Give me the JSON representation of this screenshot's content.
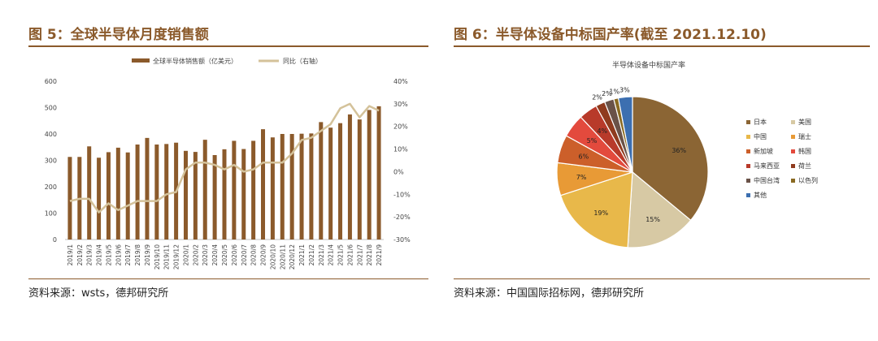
{
  "left": {
    "figure_title": "图 5：全球半导体月度销售额",
    "source": "资料来源：wsts，德邦研究所"
  },
  "right": {
    "figure_title": "图 6：半导体设备中标国产率(截至 2021.12.10)",
    "source": "资料来源：中国国际招标网，德邦研究所"
  },
  "chart_data": [
    {
      "type": "bar",
      "categories": [
        "2019/1",
        "2019/2",
        "2019/3",
        "2019/4",
        "2019/5",
        "2019/6",
        "2019/7",
        "2019/8",
        "2019/9",
        "2019/10",
        "2019/11",
        "2019/12",
        "2020/1",
        "2020/2",
        "2020/3",
        "2020/4",
        "2020/5",
        "2020/6",
        "2020/7",
        "2020/8",
        "2020/9",
        "2020/10",
        "2020/11",
        "2020/12",
        "2021/1",
        "2021/2",
        "2021/3",
        "2021/4",
        "2021/5",
        "2021/6",
        "2021/7",
        "2021/8",
        "2021/9"
      ],
      "series": [
        {
          "name": "全球半导体销售额（亿美元）",
          "type": "bar",
          "axis": "left",
          "values": [
            313,
            313,
            353,
            310,
            331,
            348,
            330,
            360,
            385,
            360,
            362,
            367,
            336,
            332,
            378,
            320,
            342,
            374,
            343,
            374,
            418,
            387,
            400,
            400,
            401,
            402,
            445,
            424,
            441,
            474,
            455,
            491,
            505
          ]
        },
        {
          "name": "同比（右轴）",
          "type": "line",
          "axis": "right",
          "values": [
            -13,
            -12,
            -12,
            -18,
            -14,
            -17,
            -15,
            -13,
            -13,
            -13,
            -10,
            -9,
            1,
            4,
            4,
            3,
            1,
            3,
            0,
            1,
            4,
            4,
            4,
            8,
            14,
            15,
            18,
            21,
            28,
            30,
            24,
            29,
            27
          ]
        }
      ],
      "ylim_left": [
        0,
        600
      ],
      "ylim_right": [
        -30,
        40
      ],
      "yticks_left": [
        "0",
        "100",
        "200",
        "300",
        "400",
        "500",
        "600"
      ],
      "yticks_right": [
        "-30%",
        "-20%",
        "-10%",
        "0%",
        "10%",
        "20%",
        "30%",
        "40%"
      ],
      "legend_position": "top",
      "grid": false
    },
    {
      "type": "pie",
      "title": "半导体设备中标国产率",
      "labels": [
        "日本",
        "美国",
        "中国",
        "瑞士",
        "新加坡",
        "韩国",
        "马来西亚",
        "荷兰",
        "中国台湾",
        "以色列",
        "其他"
      ],
      "values": [
        36,
        15,
        19,
        7,
        6,
        5,
        4,
        2,
        2,
        1,
        3
      ],
      "value_labels": [
        "36%",
        "15%",
        "19%",
        "7%",
        "6%",
        "5%",
        "4%",
        "2%",
        "2%",
        "1%",
        "3%"
      ],
      "colors": [
        "#8b6534",
        "#d7c9a4",
        "#e8b84a",
        "#e89a36",
        "#cc5f2a",
        "#e34a3d",
        "#b83a2a",
        "#8f3b1e",
        "#6a5248",
        "#8a6a22",
        "#3c6fb0"
      ],
      "legend_position": "right"
    }
  ]
}
